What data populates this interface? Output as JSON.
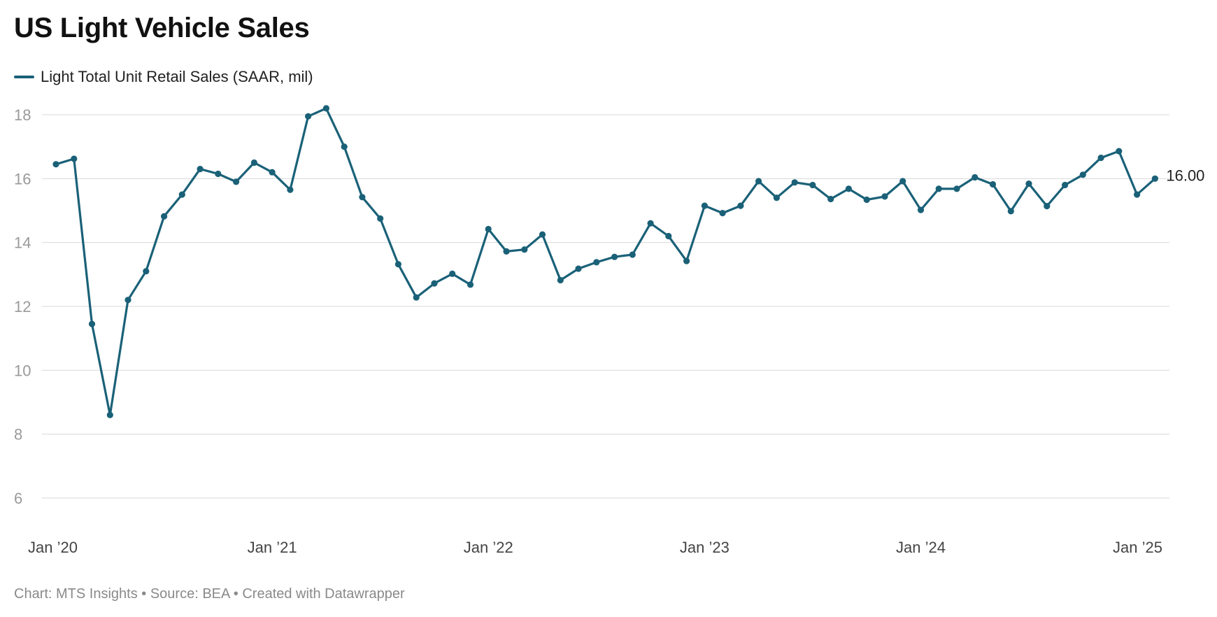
{
  "header": {
    "title": "US Light Vehicle Sales"
  },
  "footer": {
    "credit": "Chart: MTS Insights • Source: BEA • Created with Datawrapper"
  },
  "chart_data": {
    "type": "line",
    "title": "US Light Vehicle Sales",
    "xlabel": "",
    "ylabel": "",
    "ylim": [
      5,
      18.2
    ],
    "yticks": [
      6,
      8,
      10,
      12,
      14,
      16,
      18
    ],
    "grid": true,
    "legend": "top-left",
    "xtick_labels": [
      "Jan ’20",
      "Jan ’21",
      "Jan ’22",
      "Jan ’23",
      "Jan ’24",
      "Jan ’25"
    ],
    "xtick_index": [
      0,
      12,
      24,
      36,
      48,
      60
    ],
    "end_label": "16.00",
    "series": [
      {
        "name": "Light Total Unit Retail Sales (SAAR, mil)",
        "color": "#1a6178",
        "x": [
          "2020-01",
          "2020-02",
          "2020-03",
          "2020-04",
          "2020-05",
          "2020-06",
          "2020-07",
          "2020-08",
          "2020-09",
          "2020-10",
          "2020-11",
          "2020-12",
          "2021-01",
          "2021-02",
          "2021-03",
          "2021-04",
          "2021-05",
          "2021-06",
          "2021-07",
          "2021-08",
          "2021-09",
          "2021-10",
          "2021-11",
          "2021-12",
          "2022-01",
          "2022-02",
          "2022-03",
          "2022-04",
          "2022-05",
          "2022-06",
          "2022-07",
          "2022-08",
          "2022-09",
          "2022-10",
          "2022-11",
          "2022-12",
          "2023-01",
          "2023-02",
          "2023-03",
          "2023-04",
          "2023-05",
          "2023-06",
          "2023-07",
          "2023-08",
          "2023-09",
          "2023-10",
          "2023-11",
          "2023-12",
          "2024-01",
          "2024-02",
          "2024-03",
          "2024-04",
          "2024-05",
          "2024-06",
          "2024-07",
          "2024-08",
          "2024-09",
          "2024-10",
          "2024-11",
          "2024-12",
          "2025-01",
          "2025-02"
        ],
        "values": [
          16.45,
          16.62,
          11.45,
          8.6,
          12.2,
          13.1,
          14.82,
          15.5,
          16.3,
          16.15,
          15.9,
          16.5,
          16.2,
          15.65,
          17.95,
          18.2,
          17.0,
          15.42,
          14.75,
          13.32,
          12.28,
          12.72,
          13.02,
          12.68,
          14.42,
          13.72,
          13.78,
          14.25,
          12.82,
          13.18,
          13.38,
          13.55,
          13.62,
          14.6,
          14.2,
          13.42,
          15.15,
          14.92,
          15.15,
          15.92,
          15.4,
          15.88,
          15.8,
          15.36,
          15.68,
          15.34,
          15.44,
          15.92,
          15.02,
          15.68,
          15.68,
          16.04,
          15.82,
          14.98,
          15.84,
          15.14,
          15.8,
          16.12,
          16.65,
          16.86,
          15.5,
          16.0
        ]
      }
    ]
  }
}
